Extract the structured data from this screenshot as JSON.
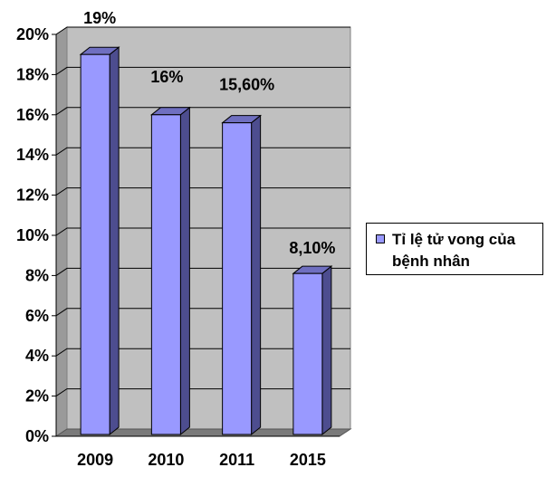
{
  "chart_data": {
    "type": "bar",
    "categories": [
      "2009",
      "2010",
      "2011",
      "2015"
    ],
    "values": [
      19,
      16,
      15.6,
      8.1
    ],
    "data_labels": [
      "19%",
      "16%",
      "15,60%",
      "8,10%"
    ],
    "y_ticks": [
      "0%",
      "2%",
      "4%",
      "6%",
      "8%",
      "10%",
      "12%",
      "14%",
      "16%",
      "18%",
      "20%"
    ],
    "ylim": [
      0,
      20
    ],
    "grid": true,
    "legend": {
      "position": "right",
      "entries": [
        "Tỉ lệ tử vong của bệnh nhân"
      ]
    },
    "title": "",
    "xlabel": "",
    "ylabel": ""
  },
  "colors": {
    "bar_front": "#9999ff",
    "bar_side": "#4d4d8f",
    "bar_top": "#6f6fc0",
    "plot_back": "#c0c0c0",
    "plot_side": "#9a9a9a",
    "floor": "#7a7a7a"
  }
}
